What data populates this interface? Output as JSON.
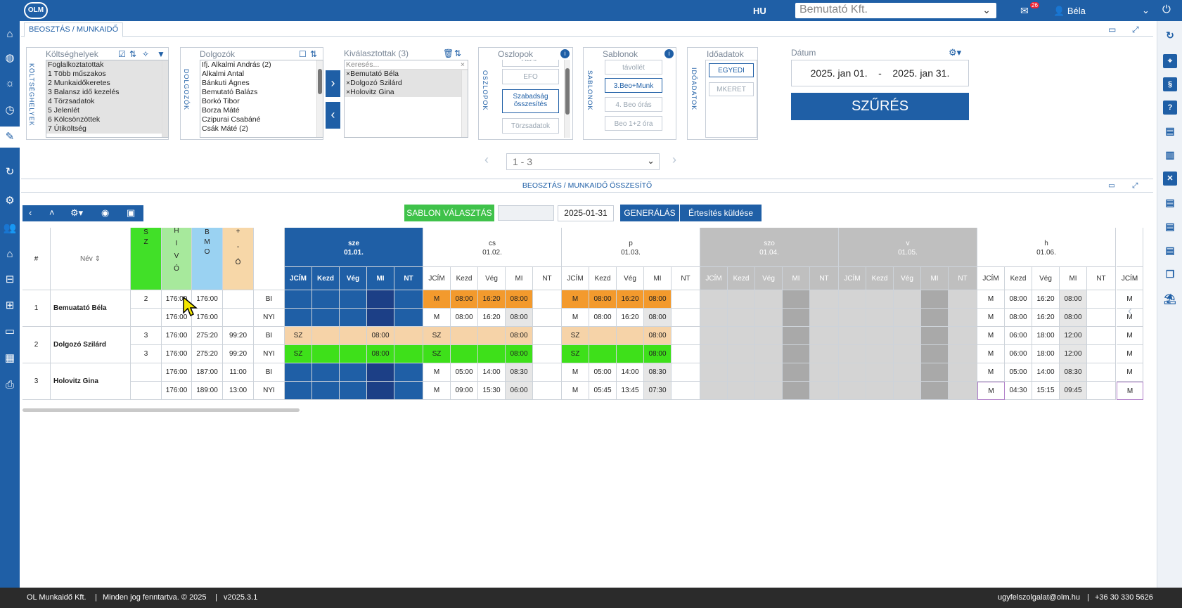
{
  "topbar": {
    "logo": "OLM",
    "language": "HU",
    "company": "Bemutató Kft.",
    "mail_count": "26",
    "user": "Béla"
  },
  "panel": {
    "tab_label": "BEOSZTÁS / MUNKAIDŐ"
  },
  "koltseghelyek": {
    "vertical_title": "KÖLTSÉGHELYEK",
    "title": "Költséghelyek",
    "items": [
      "Foglalkoztatottak",
      "1 Több műszakos",
      "2 Munkaidőkeretes",
      "3 Balansz idő kezelés",
      "4 Törzsadatok",
      "5 Jelenlét",
      "6 Kölcsönzöttek",
      "7 Útiköltség"
    ]
  },
  "dolgozok": {
    "vertical_title": "DOLGOZÓK",
    "title": "Dolgozók",
    "items": [
      "Ifj. Alkalmi András (2)",
      "Alkalmi Antal",
      "Bánkuti Ágnes",
      "Bemutató Balázs",
      "Borkó Tibor",
      "Borza Máté",
      "Czipurai Csabáné",
      "Csák Máté (2)"
    ]
  },
  "kivalasztottak": {
    "title": "Kiválasztottak (3)",
    "search_placeholder": "Keresés...",
    "items": [
      "Bemutató Béla",
      "Dolgozó Szilárd",
      "Holovitz Gina"
    ]
  },
  "oszlopok": {
    "vertical_title": "OSZLOPOK",
    "title": "Oszlopok",
    "options": [
      "ALAP",
      "EFO",
      "Szabadság összesítés",
      "Törzsadatok"
    ]
  },
  "sablonok": {
    "vertical_title": "SABLONOK",
    "title": "Sablonok",
    "options": [
      "távollét",
      "3.Beo+Munk",
      "4. Beo órás",
      "Beo 1+2 óra"
    ]
  },
  "idoadatok": {
    "vertical_title": "IDŐADATOK",
    "title": "Időadatok",
    "options": [
      "EGYEDI",
      "MKERET"
    ]
  },
  "datum": {
    "title": "Dátum",
    "from": "2025. jan 01.",
    "sep": "-",
    "to": "2025. jan 31.",
    "filter_button": "SZŰRÉS"
  },
  "pager": {
    "value": "1 - 3"
  },
  "section2": {
    "title": "BEOSZTÁS / MUNKAIDŐ ÖSSZESÍTŐ"
  },
  "actions": {
    "template_button": "SABLON VÁLASZTÁS",
    "date_value": "2025-01-31",
    "generate_button": "GENERÁLÁS",
    "notify_button": "Értesítés küldése"
  },
  "table": {
    "col_hash": "#",
    "col_name": "Név",
    "col_sz": [
      "S",
      "Z"
    ],
    "col_hivo": [
      "H",
      "I",
      "V",
      "Ó"
    ],
    "col_bmo": [
      "B",
      "M",
      "O"
    ],
    "col_pm": [
      "+",
      "-",
      "Ó"
    ],
    "subcols": [
      "JCÍM",
      "Kezd",
      "Vég",
      "MI",
      "NT"
    ],
    "days": [
      {
        "dow": "sze",
        "date": "01.01."
      },
      {
        "dow": "cs",
        "date": "01.02."
      },
      {
        "dow": "p",
        "date": "01.03."
      },
      {
        "dow": "szo",
        "date": "01.04."
      },
      {
        "dow": "v",
        "date": "01.05."
      },
      {
        "dow": "h",
        "date": "01.06."
      }
    ],
    "rows": [
      {
        "num": "1",
        "name": "Bemuatató Béla",
        "sz": "2",
        "hivo": "176:00",
        "bmo": "176:00",
        "pm": "",
        "type": "BI",
        "d": [
          [
            "",
            "",
            "",
            "",
            ""
          ],
          [
            "M",
            "08:00",
            "16:20",
            "08:00",
            ""
          ],
          [
            "M",
            "08:00",
            "16:20",
            "08:00",
            ""
          ],
          [
            "",
            "",
            "",
            "",
            ""
          ],
          [
            "",
            "",
            "",
            "",
            ""
          ],
          [
            "M",
            "08:00",
            "16:20",
            "08:00",
            ""
          ]
        ]
      },
      {
        "num": "",
        "name": "",
        "sz": "",
        "hivo": "176:00",
        "bmo": "176:00",
        "pm": "",
        "type": "NYI",
        "d": [
          [
            "",
            "",
            "",
            "",
            ""
          ],
          [
            "M",
            "08:00",
            "16:20",
            "08:00",
            ""
          ],
          [
            "M",
            "08:00",
            "16:20",
            "08:00",
            ""
          ],
          [
            "",
            "",
            "",
            "",
            ""
          ],
          [
            "",
            "",
            "",
            "",
            ""
          ],
          [
            "M",
            "08:00",
            "16:20",
            "08:00",
            ""
          ]
        ]
      },
      {
        "num": "2",
        "name": "Dolgozó Szilárd",
        "sz": "3",
        "hivo": "176:00",
        "bmo": "275:20",
        "pm": "99:20",
        "type": "BI",
        "d": [
          [
            "SZ",
            "",
            "",
            "08:00",
            ""
          ],
          [
            "SZ",
            "",
            "",
            "08:00",
            ""
          ],
          [
            "SZ",
            "",
            "",
            "08:00",
            ""
          ],
          [
            "",
            "",
            "",
            "",
            ""
          ],
          [
            "",
            "",
            "",
            "",
            ""
          ],
          [
            "M",
            "06:00",
            "18:00",
            "12:00",
            ""
          ]
        ]
      },
      {
        "num": "",
        "name": "",
        "sz": "3",
        "hivo": "176:00",
        "bmo": "275:20",
        "pm": "99:20",
        "type": "NYI",
        "d": [
          [
            "SZ",
            "",
            "",
            "08:00",
            ""
          ],
          [
            "SZ",
            "",
            "",
            "08:00",
            ""
          ],
          [
            "SZ",
            "",
            "",
            "08:00",
            ""
          ],
          [
            "",
            "",
            "",
            "",
            ""
          ],
          [
            "",
            "",
            "",
            "",
            ""
          ],
          [
            "M",
            "06:00",
            "18:00",
            "12:00",
            ""
          ]
        ]
      },
      {
        "num": "3",
        "name": "Holovitz Gina",
        "sz": "",
        "hivo": "176:00",
        "bmo": "187:00",
        "pm": "11:00",
        "type": "BI",
        "d": [
          [
            "",
            "",
            "",
            "",
            ""
          ],
          [
            "M",
            "05:00",
            "14:00",
            "08:30",
            ""
          ],
          [
            "M",
            "05:00",
            "14:00",
            "08:30",
            ""
          ],
          [
            "",
            "",
            "",
            "",
            ""
          ],
          [
            "",
            "",
            "",
            "",
            ""
          ],
          [
            "M",
            "05:00",
            "14:00",
            "08:30",
            ""
          ]
        ]
      },
      {
        "num": "",
        "name": "",
        "sz": "",
        "hivo": "176:00",
        "bmo": "189:00",
        "pm": "13:00",
        "type": "NYI",
        "d": [
          [
            "",
            "",
            "",
            "",
            ""
          ],
          [
            "M",
            "09:00",
            "15:30",
            "06:00",
            ""
          ],
          [
            "M",
            "05:45",
            "13:45",
            "07:30",
            ""
          ],
          [
            "",
            "",
            "",
            "",
            ""
          ],
          [
            "",
            "",
            "",
            "",
            ""
          ],
          [
            "M",
            "04:30",
            "15:15",
            "09:45",
            ""
          ]
        ]
      }
    ],
    "partial_col": [
      "M",
      "M",
      "M",
      "M",
      "M",
      "M"
    ]
  },
  "footer": {
    "company": "OL Munkaidő Kft.",
    "rights": "Minden jog fenntartva. © 2025",
    "version": "v2025.3.1",
    "email": "ugyfelszolgalat@olm.hu",
    "phone": "+36 30 330 5626"
  },
  "colors": {
    "primary": "#1f5fa6",
    "orange": "#f39a2d",
    "peach": "#f6d3a8",
    "green": "#3ee01a",
    "grey": "#bfbfbf",
    "darkblue": "#1c3f86"
  }
}
